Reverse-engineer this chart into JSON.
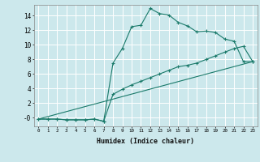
{
  "xlabel": "Humidex (Indice chaleur)",
  "ylabel": "",
  "bg_color": "#cce8ec",
  "grid_color": "#ffffff",
  "line_color": "#1a7a6a",
  "xlim": [
    -0.5,
    23.5
  ],
  "ylim": [
    -1.2,
    15.5
  ],
  "xticks": [
    0,
    1,
    2,
    3,
    4,
    5,
    6,
    7,
    8,
    9,
    10,
    11,
    12,
    13,
    14,
    15,
    16,
    17,
    18,
    19,
    20,
    21,
    22,
    23
  ],
  "yticks": [
    0,
    2,
    4,
    6,
    8,
    10,
    12,
    14
  ],
  "ytick_labels": [
    "-0",
    "2",
    "4",
    "6",
    "8",
    "10",
    "12",
    "14"
  ],
  "curve1_x": [
    0,
    1,
    2,
    3,
    4,
    5,
    6,
    7,
    8,
    9,
    10,
    11,
    12,
    13,
    14,
    15,
    16,
    17,
    18,
    19,
    20,
    21,
    22,
    23
  ],
  "curve1_y": [
    -0.2,
    -0.2,
    -0.2,
    -0.3,
    -0.3,
    -0.3,
    -0.2,
    -0.5,
    7.5,
    9.5,
    12.5,
    12.7,
    15.0,
    14.3,
    14.1,
    13.1,
    12.6,
    11.8,
    11.9,
    11.7,
    10.8,
    10.5,
    7.7,
    7.7
  ],
  "curve2_x": [
    0,
    1,
    2,
    3,
    4,
    5,
    6,
    7,
    8,
    9,
    10,
    11,
    12,
    13,
    14,
    15,
    16,
    17,
    18,
    19,
    20,
    21,
    22,
    23
  ],
  "curve2_y": [
    -0.2,
    -0.2,
    -0.2,
    -0.3,
    -0.3,
    -0.3,
    -0.2,
    -0.5,
    3.2,
    3.9,
    4.5,
    5.0,
    5.5,
    6.0,
    6.5,
    7.0,
    7.2,
    7.5,
    8.0,
    8.5,
    9.0,
    9.5,
    9.8,
    7.7
  ],
  "curve3_x": [
    0,
    23
  ],
  "curve3_y": [
    -0.2,
    7.7
  ]
}
